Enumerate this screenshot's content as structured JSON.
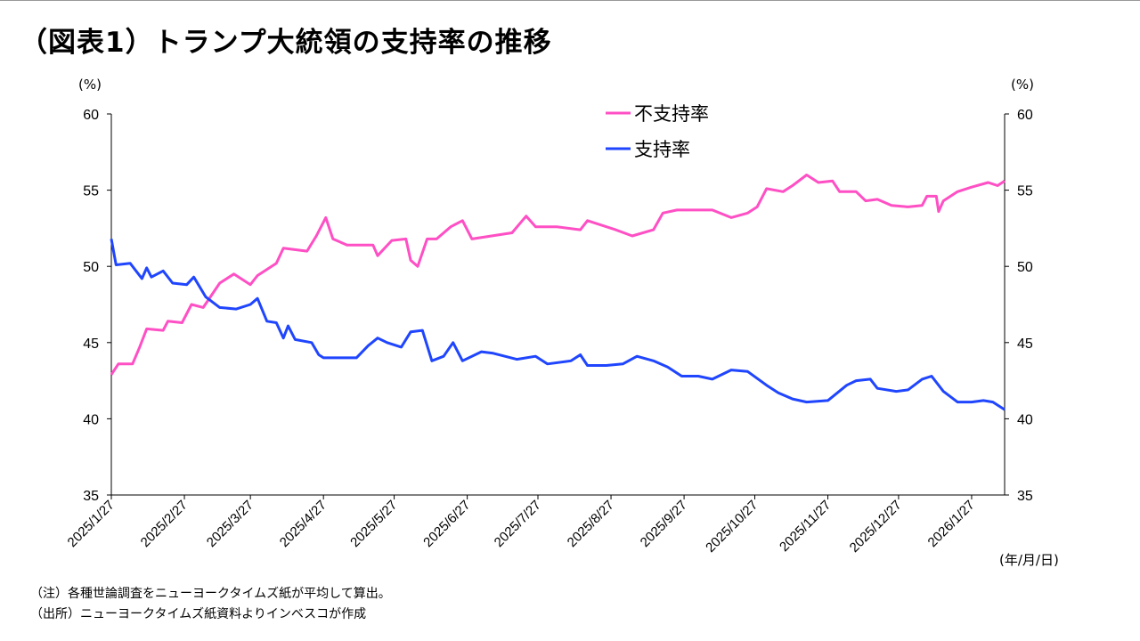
{
  "title": "（図表1）トランプ大統領の支持率の推移",
  "notes": [
    "（注）各種世論調査をニューヨークタイムズ紙が平均して算出。",
    "（出所）ニューヨークタイムズ紙資料よりインベスコが作成"
  ],
  "chart_data": {
    "type": "line",
    "title": "",
    "xlabel": "(年/月/日)",
    "ylabel_left": "(%)",
    "ylabel_right": "(%)",
    "ylim": [
      35,
      60
    ],
    "yticks": [
      35,
      40,
      45,
      50,
      55,
      60
    ],
    "xlim": [
      "2025-01-27",
      "2026-02-10"
    ],
    "xticks": [
      {
        "date": "2025-01-27",
        "label": "2025/1/27"
      },
      {
        "date": "2025-02-27",
        "label": "2025/2/27"
      },
      {
        "date": "2025-03-27",
        "label": "2025/3/27"
      },
      {
        "date": "2025-04-27",
        "label": "2025/4/27"
      },
      {
        "date": "2025-05-27",
        "label": "2025/5/27"
      },
      {
        "date": "2025-06-27",
        "label": "2025/6/27"
      },
      {
        "date": "2025-07-27",
        "label": "2025/7/27"
      },
      {
        "date": "2025-08-27",
        "label": "2025/8/27"
      },
      {
        "date": "2025-09-27",
        "label": "2025/9/27"
      },
      {
        "date": "2025-10-27",
        "label": "2025/10/27"
      },
      {
        "date": "2025-11-27",
        "label": "2025/11/27"
      },
      {
        "date": "2025-12-27",
        "label": "2025/12/27"
      },
      {
        "date": "2026-01-27",
        "label": "2026/1/27"
      }
    ],
    "grid": false,
    "legend_position": "top-center",
    "series": [
      {
        "name": "不支持率",
        "color": "#ff4fc4",
        "points": [
          [
            "2025-01-27",
            42.9
          ],
          [
            "2025-01-30",
            43.6
          ],
          [
            "2025-02-05",
            43.6
          ],
          [
            "2025-02-08",
            44.7
          ],
          [
            "2025-02-11",
            45.9
          ],
          [
            "2025-02-18",
            45.8
          ],
          [
            "2025-02-20",
            46.4
          ],
          [
            "2025-02-26",
            46.3
          ],
          [
            "2025-03-02",
            47.5
          ],
          [
            "2025-03-07",
            47.3
          ],
          [
            "2025-03-14",
            48.9
          ],
          [
            "2025-03-20",
            49.5
          ],
          [
            "2025-03-27",
            48.8
          ],
          [
            "2025-03-30",
            49.4
          ],
          [
            "2025-04-07",
            50.2
          ],
          [
            "2025-04-10",
            51.2
          ],
          [
            "2025-04-20",
            51.0
          ],
          [
            "2025-04-24",
            52.0
          ],
          [
            "2025-04-28",
            53.2
          ],
          [
            "2025-05-01",
            51.8
          ],
          [
            "2025-05-07",
            51.4
          ],
          [
            "2025-05-18",
            51.4
          ],
          [
            "2025-05-20",
            50.7
          ],
          [
            "2025-05-26",
            51.7
          ],
          [
            "2025-06-01",
            51.8
          ],
          [
            "2025-06-03",
            50.4
          ],
          [
            "2025-06-06",
            50.0
          ],
          [
            "2025-06-10",
            51.8
          ],
          [
            "2025-06-14",
            51.8
          ],
          [
            "2025-06-20",
            52.6
          ],
          [
            "2025-06-25",
            53.0
          ],
          [
            "2025-06-29",
            51.8
          ],
          [
            "2025-07-16",
            52.2
          ],
          [
            "2025-07-22",
            53.3
          ],
          [
            "2025-07-26",
            52.6
          ],
          [
            "2025-08-04",
            52.6
          ],
          [
            "2025-08-14",
            52.4
          ],
          [
            "2025-08-17",
            53.0
          ],
          [
            "2025-08-29",
            52.4
          ],
          [
            "2025-09-05",
            52.0
          ],
          [
            "2025-09-14",
            52.4
          ],
          [
            "2025-09-18",
            53.5
          ],
          [
            "2025-09-24",
            53.7
          ],
          [
            "2025-10-09",
            53.7
          ],
          [
            "2025-10-17",
            53.2
          ],
          [
            "2025-10-24",
            53.5
          ],
          [
            "2025-10-28",
            53.9
          ],
          [
            "2025-11-01",
            55.1
          ],
          [
            "2025-11-08",
            54.9
          ],
          [
            "2025-11-12",
            55.3
          ],
          [
            "2025-11-18",
            56.0
          ],
          [
            "2025-11-23",
            55.5
          ],
          [
            "2025-11-29",
            55.6
          ],
          [
            "2025-12-02",
            54.9
          ],
          [
            "2025-12-09",
            54.9
          ],
          [
            "2025-12-13",
            54.3
          ],
          [
            "2025-12-18",
            54.4
          ],
          [
            "2025-12-24",
            54.0
          ],
          [
            "2025-12-31",
            53.9
          ],
          [
            "2026-01-06",
            54.0
          ],
          [
            "2026-01-08",
            54.6
          ],
          [
            "2026-01-12",
            54.6
          ],
          [
            "2026-01-13",
            53.6
          ],
          [
            "2026-01-15",
            54.3
          ],
          [
            "2026-01-21",
            54.9
          ],
          [
            "2026-01-27",
            55.2
          ],
          [
            "2026-02-03",
            55.5
          ],
          [
            "2026-02-07",
            55.3
          ],
          [
            "2026-02-10",
            55.6
          ]
        ]
      },
      {
        "name": "支持率",
        "color": "#1f45ff",
        "points": [
          [
            "2025-01-27",
            51.8
          ],
          [
            "2025-01-29",
            50.1
          ],
          [
            "2025-02-04",
            50.2
          ],
          [
            "2025-02-09",
            49.2
          ],
          [
            "2025-02-11",
            49.9
          ],
          [
            "2025-02-13",
            49.3
          ],
          [
            "2025-02-18",
            49.7
          ],
          [
            "2025-02-22",
            48.9
          ],
          [
            "2025-02-28",
            48.8
          ],
          [
            "2025-03-03",
            49.3
          ],
          [
            "2025-03-08",
            48.0
          ],
          [
            "2025-03-14",
            47.3
          ],
          [
            "2025-03-21",
            47.2
          ],
          [
            "2025-03-27",
            47.5
          ],
          [
            "2025-03-30",
            47.9
          ],
          [
            "2025-04-03",
            46.4
          ],
          [
            "2025-04-07",
            46.3
          ],
          [
            "2025-04-10",
            45.3
          ],
          [
            "2025-04-12",
            46.1
          ],
          [
            "2025-04-15",
            45.2
          ],
          [
            "2025-04-22",
            45.0
          ],
          [
            "2025-04-25",
            44.2
          ],
          [
            "2025-04-27",
            44.0
          ],
          [
            "2025-05-11",
            44.0
          ],
          [
            "2025-05-16",
            44.8
          ],
          [
            "2025-05-20",
            45.3
          ],
          [
            "2025-05-24",
            45.0
          ],
          [
            "2025-05-30",
            44.7
          ],
          [
            "2025-06-03",
            45.7
          ],
          [
            "2025-06-08",
            45.8
          ],
          [
            "2025-06-12",
            43.8
          ],
          [
            "2025-06-17",
            44.1
          ],
          [
            "2025-06-21",
            45.0
          ],
          [
            "2025-06-25",
            43.8
          ],
          [
            "2025-07-03",
            44.4
          ],
          [
            "2025-07-08",
            44.3
          ],
          [
            "2025-07-18",
            43.9
          ],
          [
            "2025-07-26",
            44.1
          ],
          [
            "2025-07-31",
            43.6
          ],
          [
            "2025-08-10",
            43.8
          ],
          [
            "2025-08-14",
            44.2
          ],
          [
            "2025-08-17",
            43.5
          ],
          [
            "2025-08-25",
            43.5
          ],
          [
            "2025-09-01",
            43.6
          ],
          [
            "2025-09-07",
            44.1
          ],
          [
            "2025-09-14",
            43.8
          ],
          [
            "2025-09-20",
            43.4
          ],
          [
            "2025-09-26",
            42.8
          ],
          [
            "2025-10-03",
            42.8
          ],
          [
            "2025-10-09",
            42.6
          ],
          [
            "2025-10-17",
            43.2
          ],
          [
            "2025-10-24",
            43.1
          ],
          [
            "2025-11-01",
            42.2
          ],
          [
            "2025-11-06",
            41.7
          ],
          [
            "2025-11-12",
            41.3
          ],
          [
            "2025-11-18",
            41.1
          ],
          [
            "2025-11-27",
            41.2
          ],
          [
            "2025-12-05",
            42.2
          ],
          [
            "2025-12-09",
            42.5
          ],
          [
            "2025-12-15",
            42.6
          ],
          [
            "2025-12-18",
            42.0
          ],
          [
            "2025-12-26",
            41.8
          ],
          [
            "2025-12-31",
            41.9
          ],
          [
            "2026-01-06",
            42.6
          ],
          [
            "2026-01-10",
            42.8
          ],
          [
            "2026-01-15",
            41.8
          ],
          [
            "2026-01-21",
            41.1
          ],
          [
            "2026-01-27",
            41.1
          ],
          [
            "2026-02-01",
            41.2
          ],
          [
            "2026-02-05",
            41.1
          ],
          [
            "2026-02-10",
            40.6
          ]
        ]
      }
    ]
  }
}
